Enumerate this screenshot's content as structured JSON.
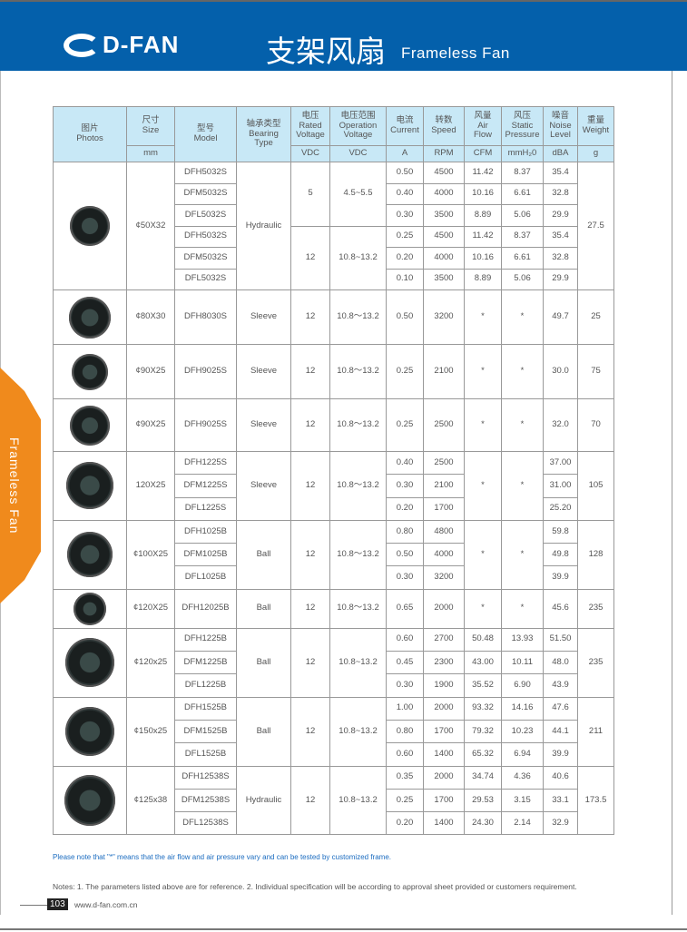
{
  "header": {
    "brand": "D-FAN",
    "title_cn": "支架风扇",
    "title_en": "Frameless Fan"
  },
  "side_tab": "Frameless Fan",
  "colors": {
    "banner": "#0460ab",
    "side_tab": "#f08a1c",
    "table_header": "#c8e8f6",
    "note": "#1b6cc0"
  },
  "table": {
    "headers": {
      "photos": "图片\nPhotos",
      "size": "尺寸\nSize",
      "model": "型号\nModel",
      "bearing": "轴承类型\nBearing\nType",
      "rated": "电压\nRated\nVoltage",
      "operation": "电压范围\nOperation\nVoltage",
      "current": "电流\nCurrent",
      "speed": "转数\nSpeed",
      "airflow": "风量\nAir\nFlow",
      "pressure": "风压\nStatic\nPressure",
      "noise": "噪音\nNoise\nLevel",
      "weight": "重量\nWeight"
    },
    "units": {
      "size": "mm",
      "rated": "VDC",
      "operation": "VDC",
      "current": "A",
      "speed": "RPM",
      "airflow": "CFM",
      "pressure": "mmH₂0",
      "noise": "dBA",
      "weight": "g"
    },
    "groups": [
      {
        "size": "¢50X32",
        "bearing": "Hydraulic",
        "weight": "27.5",
        "photo": "blower-fan-50",
        "voltages": [
          {
            "rated": "5",
            "op": "4.5~5.5",
            "span": 3
          },
          {
            "rated": "12",
            "op": "10.8~13.2",
            "span": 3
          }
        ],
        "rows": [
          [
            "DFH5032S",
            "0.50",
            "4500",
            "11.42",
            "8.37",
            "35.4"
          ],
          [
            "DFM5032S",
            "0.40",
            "4000",
            "10.16",
            "6.61",
            "32.8"
          ],
          [
            "DFL5032S",
            "0.30",
            "3500",
            "8.89",
            "5.06",
            "29.9"
          ],
          [
            "DFH5032S",
            "0.25",
            "4500",
            "11.42",
            "8.37",
            "35.4"
          ],
          [
            "DFM5032S",
            "0.20",
            "4000",
            "10.16",
            "6.61",
            "32.8"
          ],
          [
            "DFL5032S",
            "0.10",
            "3500",
            "8.89",
            "5.06",
            "29.9"
          ]
        ]
      },
      {
        "size": "¢80X30",
        "bearing": "Sleeve",
        "weight": "25",
        "photo": "blower-fan-80",
        "voltages": [
          {
            "rated": "12",
            "op": "10.8～13.2",
            "span": 1
          }
        ],
        "rows": [
          [
            "DFH8030S",
            "0.50",
            "3200",
            "*",
            "*",
            "49.7"
          ]
        ]
      },
      {
        "size": "¢90X25",
        "bearing": "Sleeve",
        "weight": "75",
        "photo": "axial-fan-90",
        "voltages": [
          {
            "rated": "12",
            "op": "10.8～13.2",
            "span": 1
          }
        ],
        "rows": [
          [
            "DFH9025S",
            "0.25",
            "2100",
            "*",
            "*",
            "30.0"
          ]
        ]
      },
      {
        "size": "¢90X25",
        "bearing": "Sleeve",
        "weight": "70",
        "photo": "blower-fan-90",
        "voltages": [
          {
            "rated": "12",
            "op": "10.8～13.2",
            "span": 1
          }
        ],
        "rows": [
          [
            "DFH9025S",
            "0.25",
            "2500",
            "*",
            "*",
            "32.0"
          ]
        ]
      },
      {
        "size": "120X25",
        "bearing": "Sleeve",
        "weight": "105",
        "photo": "axial-fan-120",
        "merged_air": "*",
        "voltages": [
          {
            "rated": "12",
            "op": "10.8～13.2",
            "span": 3
          }
        ],
        "rows": [
          [
            "DFH1225S",
            "0.40",
            "2500",
            "",
            "",
            "37.00"
          ],
          [
            "DFM1225S",
            "0.30",
            "2100",
            "",
            "",
            "31.00"
          ],
          [
            "DFL1225S",
            "0.20",
            "1700",
            "",
            "",
            "25.20"
          ]
        ]
      },
      {
        "size": "¢100X25",
        "bearing": "Ball",
        "weight": "128",
        "photo": "blower-fan-100",
        "merged_air": "*",
        "voltages": [
          {
            "rated": "12",
            "op": "10.8～13.2",
            "span": 3
          }
        ],
        "rows": [
          [
            "DFH1025B",
            "0.80",
            "4800",
            "",
            "",
            "59.8"
          ],
          [
            "DFM1025B",
            "0.50",
            "4000",
            "",
            "",
            "49.8"
          ],
          [
            "DFL1025B",
            "0.30",
            "3200",
            "",
            "",
            "39.9"
          ]
        ]
      },
      {
        "size": "¢120X25",
        "bearing": "Ball",
        "weight": "235",
        "photo": "blower-fan-120",
        "voltages": [
          {
            "rated": "12",
            "op": "10.8～13.2",
            "span": 1
          }
        ],
        "rows": [
          [
            "DFH12025B",
            "0.65",
            "2000",
            "*",
            "*",
            "45.6"
          ]
        ]
      },
      {
        "size": "¢120x25",
        "bearing": "Ball",
        "weight": "235",
        "photo": "blower-fan-120b",
        "voltages": [
          {
            "rated": "12",
            "op": "10.8~13.2",
            "span": 3
          }
        ],
        "rows": [
          [
            "DFH1225B",
            "0.60",
            "2700",
            "50.48",
            "13.93",
            "51.50"
          ],
          [
            "DFM1225B",
            "0.45",
            "2300",
            "43.00",
            "10.11",
            "48.0"
          ],
          [
            "DFL1225B",
            "0.30",
            "1900",
            "35.52",
            "6.90",
            "43.9"
          ]
        ]
      },
      {
        "size": "¢150x25",
        "bearing": "Ball",
        "weight": "211",
        "photo": "blower-fan-150",
        "voltages": [
          {
            "rated": "12",
            "op": "10.8~13.2",
            "span": 3
          }
        ],
        "rows": [
          [
            "DFH1525B",
            "1.00",
            "2000",
            "93.32",
            "14.16",
            "47.6"
          ],
          [
            "DFM1525B",
            "0.80",
            "1700",
            "79.32",
            "10.23",
            "44.1"
          ],
          [
            "DFL1525B",
            "0.60",
            "1400",
            "65.32",
            "6.94",
            "39.9"
          ]
        ]
      },
      {
        "size": "¢125x38",
        "bearing": "Hydraulic",
        "weight": "173.5",
        "photo": "blower-fan-125",
        "voltages": [
          {
            "rated": "12",
            "op": "10.8~13.2",
            "span": 3
          }
        ],
        "rows": [
          [
            "DFH12538S",
            "0.35",
            "2000",
            "34.74",
            "4.36",
            "40.6"
          ],
          [
            "DFM12538S",
            "0.25",
            "1700",
            "29.53",
            "3.15",
            "33.1"
          ],
          [
            "DFL12538S",
            "0.20",
            "1400",
            "24.30",
            "2.14",
            "32.9"
          ]
        ]
      }
    ]
  },
  "footer": {
    "note": "Please note that  \"*\"  means that the air flow and air pressure vary and can be tested by customized frame.",
    "notes": "Notes: 1. The parameters listed above are for reference.   2. Individual specification will be according to approval sheet provided or customers requirement.",
    "page": "103",
    "website": "www.d-fan.com.cn"
  }
}
